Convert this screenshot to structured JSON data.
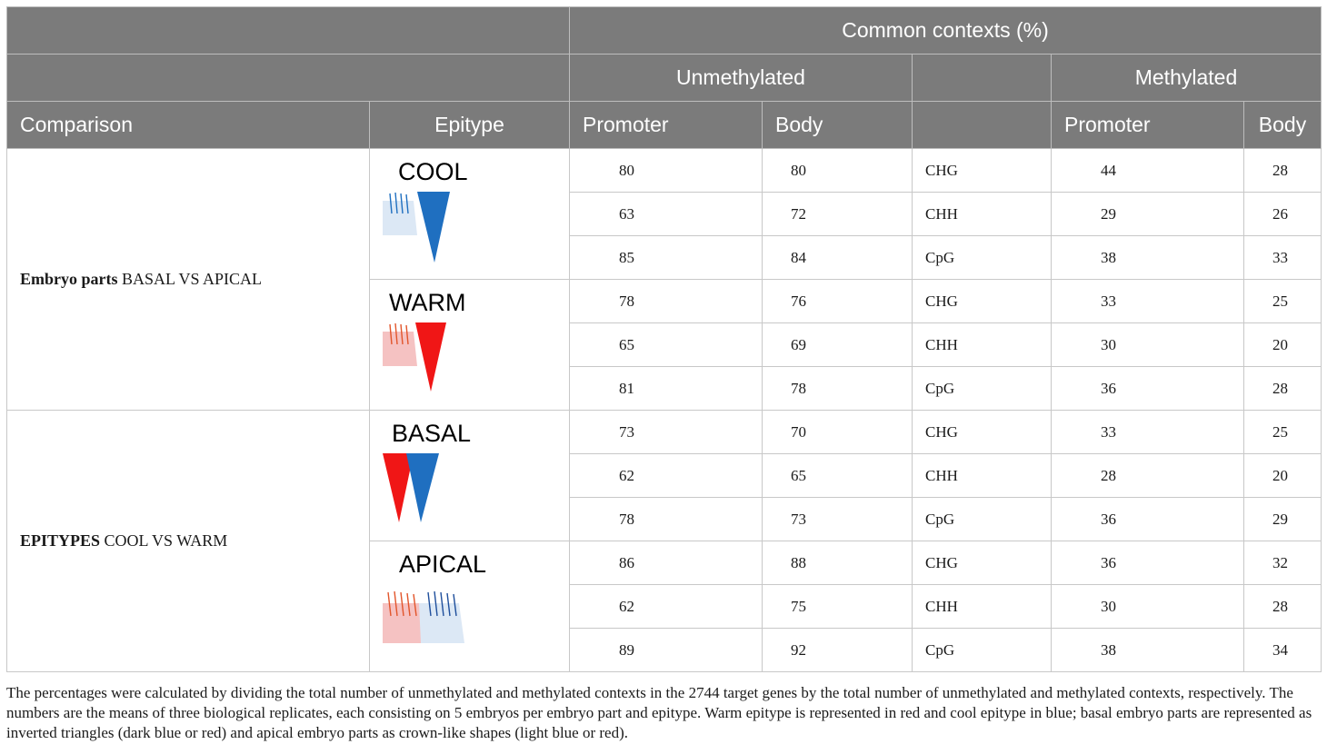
{
  "header": {
    "group_title": "Common contexts (%)",
    "unmethylated": "Unmethylated",
    "methylated": "Methylated",
    "comparison": "Comparison",
    "epitype": "Epitype",
    "promoter": "Promoter",
    "body": "Body"
  },
  "groups": [
    {
      "comparison_bold": "Embryo parts",
      "comparison_rest": " BASAL VS APICAL",
      "epitypes": [
        {
          "label": "COOL",
          "icon": "cool-epitype-icon",
          "rows": [
            {
              "u_prom": "80",
              "u_body": "80",
              "context": "CHG",
              "m_prom": "44",
              "m_body": "28"
            },
            {
              "u_prom": "63",
              "u_body": "72",
              "context": "CHH",
              "m_prom": "29",
              "m_body": "26"
            },
            {
              "u_prom": "85",
              "u_body": "84",
              "context": "CpG",
              "m_prom": "38",
              "m_body": "33"
            }
          ]
        },
        {
          "label": "WARM",
          "icon": "warm-epitype-icon",
          "rows": [
            {
              "u_prom": "78",
              "u_body": "76",
              "context": "CHG",
              "m_prom": "33",
              "m_body": "25"
            },
            {
              "u_prom": "65",
              "u_body": "69",
              "context": "CHH",
              "m_prom": "30",
              "m_body": "20"
            },
            {
              "u_prom": "81",
              "u_body": "78",
              "context": "CpG",
              "m_prom": "36",
              "m_body": "28"
            }
          ]
        }
      ]
    },
    {
      "comparison_bold": "EPITYPES",
      "comparison_rest": " COOL VS WARM",
      "epitypes": [
        {
          "label": "BASAL",
          "icon": "basal-part-icon",
          "rows": [
            {
              "u_prom": "73",
              "u_body": "70",
              "context": "CHG",
              "m_prom": "33",
              "m_body": "25"
            },
            {
              "u_prom": "62",
              "u_body": "65",
              "context": "CHH",
              "m_prom": "28",
              "m_body": "20"
            },
            {
              "u_prom": "78",
              "u_body": "73",
              "context": "CpG",
              "m_prom": "36",
              "m_body": "29"
            }
          ]
        },
        {
          "label": "APICAL",
          "icon": "apical-part-icon",
          "rows": [
            {
              "u_prom": "86",
              "u_body": "88",
              "context": "CHG",
              "m_prom": "36",
              "m_body": "32"
            },
            {
              "u_prom": "62",
              "u_body": "75",
              "context": "CHH",
              "m_prom": "30",
              "m_body": "28"
            },
            {
              "u_prom": "89",
              "u_body": "92",
              "context": "CpG",
              "m_prom": "38",
              "m_body": "34"
            }
          ]
        }
      ]
    }
  ],
  "colors": {
    "header_bg": "#7b7b7b",
    "cool_dark": "#1f6fc0",
    "cool_light": "#dce8f5",
    "warm_dark": "#f01616",
    "warm_light": "#f5c2c2"
  },
  "footnote": "The percentages were calculated by dividing the total number of unmethylated and methylated contexts in the 2744 target genes by the total number of unmethylated and methylated contexts, respectively. The numbers are the means of three biological replicates, each consisting on 5 embryos per embryo part and epitype. Warm epitype is represented in red and cool epitype in blue; basal embryo parts are represented as inverted triangles (dark blue or red) and apical embryo parts as crown-like shapes (light blue or red)."
}
